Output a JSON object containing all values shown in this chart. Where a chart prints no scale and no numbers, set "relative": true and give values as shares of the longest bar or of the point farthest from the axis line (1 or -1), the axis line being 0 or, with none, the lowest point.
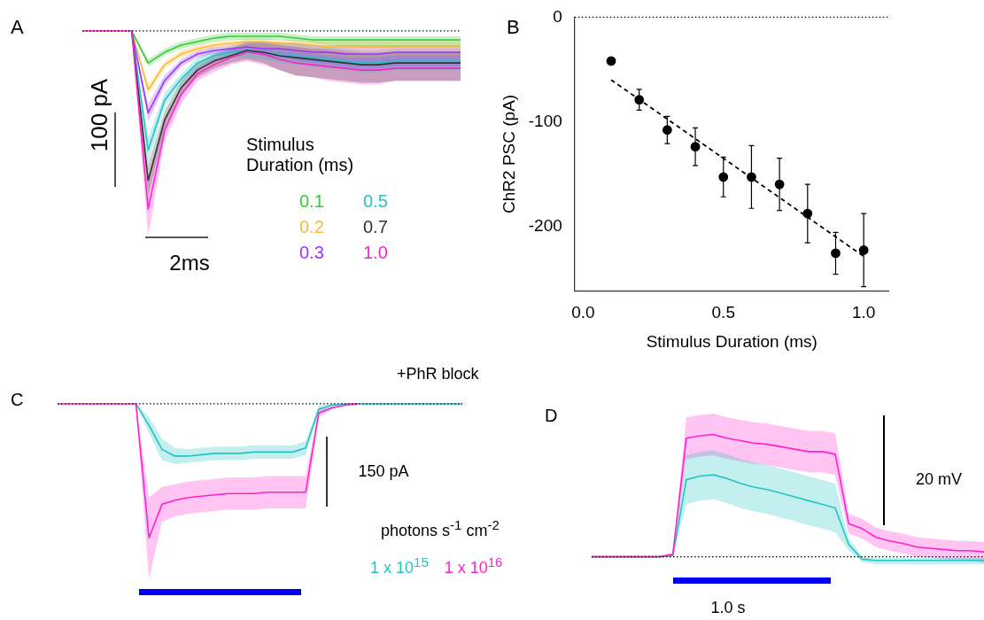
{
  "chart_data": [
    {
      "type": "line",
      "title": "A",
      "relative": true,
      "legend": "bottom right",
      "legend_title": "Stimulus Duration (ms)",
      "annotations": [
        "100 pA",
        "2ms"
      ],
      "ref_lines": [
        {
          "axis": "y",
          "value": 0,
          "line_style": "dotted",
          "color": "#000000"
        }
      ],
      "categories": [
        null,
        null,
        null,
        null,
        null,
        null,
        null,
        null,
        null,
        null,
        null,
        null,
        null,
        null,
        null,
        null,
        null,
        null,
        null,
        null,
        null,
        null,
        null,
        null
      ],
      "series": [
        {
          "name": "0.1",
          "color": "#33cc33",
          "values": [
            null,
            null,
            null,
            0,
            -0.18,
            -0.12,
            -0.08,
            -0.06,
            -0.04,
            -0.03,
            -0.03,
            -0.03,
            -0.03,
            -0.04,
            -0.05,
            -0.05,
            -0.05,
            -0.05,
            -0.05,
            -0.05,
            -0.05,
            -0.05,
            -0.05,
            -0.05
          ],
          "lower": [
            0,
            0,
            0,
            0,
            -0.2,
            -0.14,
            -0.1,
            -0.08,
            -0.06,
            -0.05,
            -0.05,
            -0.05,
            -0.05,
            -0.06,
            -0.07,
            -0.08,
            -0.09,
            -0.09,
            -0.09,
            -0.09,
            -0.09,
            -0.09,
            -0.09,
            -0.09
          ],
          "upper": [
            0,
            0,
            0,
            0,
            -0.16,
            -0.1,
            -0.06,
            -0.04,
            -0.02,
            -0.01,
            -0.01,
            -0.01,
            -0.01,
            -0.02,
            -0.03,
            -0.03,
            -0.03,
            -0.03,
            -0.03,
            -0.03,
            -0.03,
            -0.03,
            -0.03,
            -0.03
          ]
        },
        {
          "name": "0.2",
          "color": "#ffb833",
          "values": [
            null,
            null,
            null,
            0,
            -0.33,
            -0.19,
            -0.13,
            -0.1,
            -0.08,
            -0.07,
            -0.06,
            -0.06,
            -0.07,
            -0.07,
            -0.08,
            -0.09,
            -0.09,
            -0.09,
            -0.09,
            -0.09,
            -0.09,
            -0.09,
            -0.09,
            -0.09
          ],
          "lower": [
            0,
            0,
            0,
            0,
            -0.36,
            -0.21,
            -0.15,
            -0.12,
            -0.1,
            -0.09,
            -0.09,
            -0.1,
            -0.11,
            -0.12,
            -0.13,
            -0.14,
            -0.15,
            -0.15,
            -0.15,
            -0.14,
            -0.14,
            -0.14,
            -0.14,
            -0.14
          ],
          "upper": [
            0,
            0,
            0,
            0,
            -0.3,
            -0.17,
            -0.11,
            -0.08,
            -0.06,
            -0.05,
            -0.04,
            -0.04,
            -0.05,
            -0.05,
            -0.05,
            -0.05,
            -0.05,
            -0.05,
            -0.05,
            -0.05,
            -0.05,
            -0.05,
            -0.05,
            -0.05
          ]
        },
        {
          "name": "0.3",
          "color": "#9933ff",
          "values": [
            null,
            null,
            null,
            0,
            -0.46,
            -0.28,
            -0.18,
            -0.13,
            -0.11,
            -0.1,
            -0.09,
            -0.1,
            -0.1,
            -0.11,
            -0.12,
            -0.12,
            -0.13,
            -0.13,
            -0.13,
            -0.12,
            -0.12,
            -0.12,
            -0.12,
            -0.12
          ],
          "lower": [
            0,
            0,
            0,
            0,
            -0.51,
            -0.31,
            -0.2,
            -0.15,
            -0.13,
            -0.12,
            -0.12,
            -0.14,
            -0.15,
            -0.17,
            -0.18,
            -0.19,
            -0.2,
            -0.21,
            -0.21,
            -0.2,
            -0.2,
            -0.2,
            -0.2,
            -0.2
          ],
          "upper": [
            0,
            0,
            0,
            0,
            -0.41,
            -0.25,
            -0.16,
            -0.11,
            -0.09,
            -0.08,
            -0.06,
            -0.06,
            -0.07,
            -0.07,
            -0.08,
            -0.08,
            -0.08,
            -0.08,
            -0.08,
            -0.08,
            -0.08,
            -0.08,
            -0.08,
            -0.08
          ]
        },
        {
          "name": "0.5",
          "color": "#22c4c4",
          "values": [
            null,
            null,
            null,
            0,
            -0.67,
            -0.39,
            -0.27,
            -0.18,
            -0.14,
            -0.12,
            -0.11,
            -0.12,
            -0.13,
            -0.14,
            -0.15,
            -0.16,
            -0.17,
            -0.18,
            -0.18,
            -0.17,
            -0.17,
            -0.17,
            -0.17,
            -0.17
          ],
          "lower": [
            0,
            0,
            0,
            0,
            -0.74,
            -0.43,
            -0.3,
            -0.21,
            -0.17,
            -0.15,
            -0.15,
            -0.16,
            -0.18,
            -0.19,
            -0.2,
            -0.21,
            -0.22,
            -0.23,
            -0.23,
            -0.22,
            -0.22,
            -0.22,
            -0.22,
            -0.22
          ],
          "upper": [
            0,
            0,
            0,
            0,
            -0.6,
            -0.35,
            -0.24,
            -0.15,
            -0.11,
            -0.09,
            -0.07,
            -0.06,
            -0.06,
            -0.07,
            -0.08,
            -0.09,
            -0.1,
            -0.11,
            -0.11,
            -0.1,
            -0.1,
            -0.1,
            -0.1,
            -0.1
          ]
        },
        {
          "name": "0.7",
          "color": "#333333",
          "values": [
            null,
            null,
            null,
            0,
            -0.84,
            -0.5,
            -0.32,
            -0.22,
            -0.17,
            -0.14,
            -0.11,
            -0.12,
            -0.14,
            -0.15,
            -0.16,
            -0.17,
            -0.18,
            -0.19,
            -0.19,
            -0.18,
            -0.18,
            -0.18,
            -0.18,
            -0.18
          ],
          "lower": [
            0,
            0,
            0,
            0,
            -0.93,
            -0.55,
            -0.36,
            -0.26,
            -0.21,
            -0.18,
            -0.16,
            -0.18,
            -0.22,
            -0.25,
            -0.26,
            -0.27,
            -0.28,
            -0.29,
            -0.29,
            -0.28,
            -0.28,
            -0.28,
            -0.28,
            -0.28
          ],
          "upper": [
            0,
            0,
            0,
            0,
            -0.75,
            -0.45,
            -0.28,
            -0.18,
            -0.13,
            -0.1,
            -0.06,
            -0.06,
            -0.08,
            -0.09,
            -0.1,
            -0.11,
            -0.12,
            -0.13,
            -0.13,
            -0.12,
            -0.12,
            -0.12,
            -0.12,
            -0.12
          ]
        },
        {
          "name": "1.0",
          "color": "#ff22cc",
          "values": [
            0,
            0,
            0,
            0,
            -1,
            -0.56,
            -0.36,
            -0.24,
            -0.19,
            -0.15,
            -0.12,
            -0.13,
            -0.16,
            -0.18,
            -0.19,
            -0.2,
            -0.21,
            -0.22,
            -0.22,
            -0.21,
            -0.21,
            -0.21,
            -0.21,
            -0.21
          ],
          "lower": [
            0,
            0,
            0,
            0,
            -1.15,
            -0.62,
            -0.41,
            -0.28,
            -0.23,
            -0.19,
            -0.17,
            -0.19,
            -0.22,
            -0.25,
            -0.26,
            -0.28,
            -0.29,
            -0.3,
            -0.3,
            -0.28,
            -0.28,
            -0.28,
            -0.28,
            -0.28
          ],
          "upper": [
            0,
            0,
            0,
            0,
            -0.85,
            -0.5,
            -0.31,
            -0.2,
            -0.15,
            -0.11,
            -0.07,
            -0.07,
            -0.08,
            -0.09,
            -0.1,
            -0.1,
            -0.11,
            -0.12,
            -0.12,
            -0.12,
            -0.12,
            -0.12,
            -0.12,
            -0.12
          ]
        }
      ]
    },
    {
      "type": "scatter",
      "title": "B",
      "xlabel": "Stimulus Duration (ms)",
      "ylabel": "ChR2 PSC (pA)",
      "grid": false,
      "xlim": [
        -0.03,
        1.09
      ],
      "xticks": [
        {
          "value": 0,
          "label": "0.0"
        },
        {
          "value": 0.5,
          "label": "0.5"
        },
        {
          "value": 1,
          "label": "1.0"
        }
      ],
      "ylim": [
        -262,
        0
      ],
      "yticks": [
        0,
        -100,
        -200
      ],
      "ref_lines": [
        {
          "axis": "y",
          "value": 0,
          "line_style": "dotted",
          "color": "#000000"
        }
      ],
      "series": [
        {
          "type": "scatter",
          "marker": "circle",
          "color": "#000000",
          "x": [
            0.1,
            0.2,
            0.3,
            0.4,
            0.5,
            0.6,
            0.7,
            0.8,
            0.9,
            1.0
          ],
          "values": [
            -42,
            -79,
            -108,
            -124,
            -153,
            -153,
            -160,
            -188,
            -226,
            -223
          ],
          "errors": [
            null,
            10,
            13,
            18,
            19,
            30,
            25,
            28,
            20,
            35
          ]
        },
        {
          "type": "line",
          "marker": "none",
          "line_style": "dashed",
          "color": "#000000",
          "x": [
            0.1,
            1.0
          ],
          "values": [
            -60,
            -229
          ]
        }
      ]
    },
    {
      "type": "line",
      "title": "C",
      "subtitle": "+PhR block",
      "relative": true,
      "legend": "bottom right",
      "legend_title": "photons s$^{-1}$ cm$^{-2}$",
      "annotations": [
        "150 pA"
      ],
      "ref_lines": [
        {
          "axis": "y",
          "value": 0,
          "line_style": "dotted",
          "color": "#000000"
        }
      ],
      "categories": [
        null,
        null,
        null,
        null,
        null,
        null,
        null,
        null,
        null,
        null,
        null,
        null,
        null,
        null,
        null,
        null,
        null,
        null,
        null,
        null,
        null,
        null,
        null,
        null,
        null,
        null,
        null,
        null,
        null,
        null,
        null,
        null
      ],
      "series": [
        {
          "name": "1 x 10$^{15}$",
          "color": "#22c4c4",
          "values": [
            null,
            null,
            null,
            null,
            null,
            null,
            0,
            -0.16,
            -0.34,
            -0.39,
            -0.39,
            -0.38,
            -0.37,
            -0.37,
            -0.37,
            -0.36,
            -0.36,
            -0.36,
            -0.36,
            -0.33,
            -0.04,
            -0.01,
            0,
            0,
            0,
            0,
            0,
            0,
            0,
            0,
            0,
            0
          ],
          "lower": [
            0,
            0,
            0,
            0,
            0,
            0,
            0,
            -0.22,
            -0.42,
            -0.45,
            -0.44,
            -0.43,
            -0.42,
            -0.42,
            -0.42,
            -0.41,
            -0.41,
            -0.41,
            -0.41,
            -0.38,
            -0.07,
            -0.02,
            -0.01,
            0,
            0,
            0,
            0,
            0,
            0,
            0,
            0,
            0
          ],
          "upper": [
            0,
            0,
            0,
            0,
            0,
            0,
            0,
            -0.1,
            -0.26,
            -0.33,
            -0.34,
            -0.33,
            -0.32,
            -0.32,
            -0.32,
            -0.31,
            -0.31,
            -0.31,
            -0.31,
            -0.28,
            -0.01,
            0,
            0,
            0,
            0,
            0,
            0,
            0,
            0,
            0,
            0,
            0
          ]
        },
        {
          "name": "1 x 10$^{16}$",
          "color": "#ff22cc",
          "values": [
            0,
            0,
            0,
            0,
            0,
            0,
            0,
            -1,
            -0.75,
            -0.72,
            -0.7,
            -0.69,
            -0.68,
            -0.67,
            -0.67,
            -0.67,
            -0.66,
            -0.66,
            -0.66,
            -0.66,
            -0.07,
            -0.03,
            -0.01,
            0,
            null,
            null,
            null,
            null,
            null,
            null,
            null,
            null
          ],
          "lower": [
            0,
            0,
            0,
            0,
            0,
            0,
            0,
            -1.31,
            -0.88,
            -0.84,
            -0.82,
            -0.81,
            -0.8,
            -0.79,
            -0.79,
            -0.79,
            -0.78,
            -0.78,
            -0.78,
            -0.78,
            -0.1,
            -0.04,
            -0.01,
            0,
            0,
            0,
            0,
            0,
            0,
            0,
            0,
            0
          ],
          "upper": [
            0,
            0,
            0,
            0,
            0,
            0,
            0,
            -0.7,
            -0.62,
            -0.6,
            -0.58,
            -0.57,
            -0.56,
            -0.55,
            -0.55,
            -0.55,
            -0.54,
            -0.54,
            -0.54,
            -0.54,
            -0.04,
            -0.02,
            -0.01,
            0,
            0,
            0,
            0,
            0,
            0,
            0,
            0,
            0
          ]
        }
      ]
    },
    {
      "type": "line",
      "title": "D",
      "relative": true,
      "annotations": [
        "20 mV",
        "1.0 s"
      ],
      "ref_lines": [
        {
          "axis": "y",
          "value": 0,
          "line_style": "dotted",
          "color": "#000000"
        }
      ],
      "categories": [
        null,
        null,
        null,
        null,
        null,
        null,
        null,
        null,
        null,
        null,
        null,
        null,
        null,
        null,
        null,
        null,
        null,
        null,
        null,
        null,
        null,
        null,
        null,
        null,
        null,
        null,
        null,
        null,
        null,
        null
      ],
      "series": [
        {
          "color": "#22c4c4",
          "values": [
            null,
            null,
            null,
            null,
            null,
            0,
            0.01,
            0.63,
            0.66,
            0.67,
            0.64,
            0.6,
            0.57,
            0.55,
            0.52,
            0.49,
            0.46,
            0.43,
            0.4,
            0.1,
            -0.02,
            -0.03,
            -0.03,
            -0.03,
            -0.03,
            -0.03,
            -0.03,
            -0.03,
            -0.03,
            -0.03
          ],
          "upper": [
            0.01,
            0.01,
            0.01,
            0.01,
            0.01,
            0.01,
            0.02,
            0.83,
            0.86,
            0.87,
            0.84,
            0.8,
            0.77,
            0.75,
            0.72,
            0.69,
            0.66,
            0.63,
            0.6,
            0.15,
            0,
            -0.01,
            -0.01,
            -0.01,
            -0.01,
            -0.01,
            -0.01,
            -0.01,
            -0.01,
            -0.01
          ],
          "lower": [
            -0.01,
            -0.01,
            -0.01,
            -0.01,
            -0.01,
            -0.01,
            0,
            0.43,
            0.46,
            0.47,
            0.44,
            0.4,
            0.37,
            0.35,
            0.32,
            0.29,
            0.26,
            0.23,
            0.2,
            0.05,
            -0.04,
            -0.06,
            -0.06,
            -0.06,
            -0.06,
            -0.06,
            -0.06,
            -0.06,
            -0.06,
            -0.06
          ]
        },
        {
          "color": "#ff22cc",
          "values": [
            0,
            0,
            0,
            0,
            0,
            0,
            0.02,
            0.97,
            0.99,
            1,
            0.97,
            0.95,
            0.93,
            0.92,
            0.9,
            0.88,
            0.86,
            0.86,
            0.84,
            0.27,
            0.23,
            0.16,
            0.13,
            0.11,
            0.08,
            0.07,
            0.06,
            0.05,
            0.05,
            0.04
          ],
          "upper": [
            0.01,
            0.01,
            0.01,
            0.01,
            0.01,
            0.01,
            0.03,
            1.14,
            1.16,
            1.17,
            1.14,
            1.12,
            1.1,
            1.09,
            1.07,
            1.05,
            1.03,
            1.03,
            1.01,
            0.35,
            0.31,
            0.24,
            0.21,
            0.19,
            0.16,
            0.15,
            0.14,
            0.13,
            0.13,
            0.12
          ],
          "lower": [
            -0.01,
            -0.01,
            -0.01,
            -0.01,
            -0.01,
            -0.01,
            0.01,
            0.8,
            0.82,
            0.83,
            0.8,
            0.78,
            0.76,
            0.75,
            0.73,
            0.71,
            0.69,
            0.69,
            0.67,
            0.19,
            0.15,
            0.08,
            0.05,
            0.03,
            0,
            -0.01,
            -0.02,
            -0.03,
            -0.03,
            -0.05
          ]
        }
      ]
    }
  ]
}
